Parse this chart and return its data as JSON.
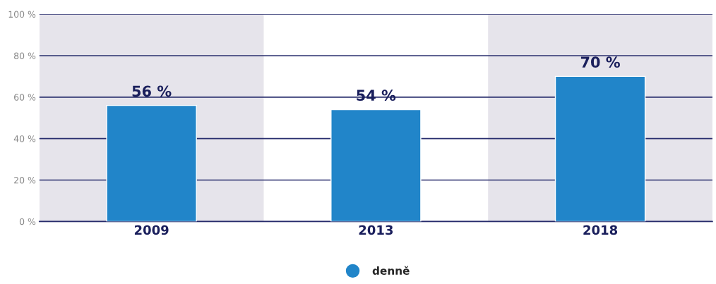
{
  "chart_data": {
    "type": "bar",
    "categories": [
      "2009",
      "2013",
      "2018"
    ],
    "series": [
      {
        "name": "denně",
        "color": "#2185c9",
        "values": [
          56,
          54,
          70
        ],
        "value_labels": [
          "56 %",
          "54 %",
          "70 %"
        ]
      }
    ],
    "ylim": [
      0,
      100
    ],
    "yticks": [
      {
        "value": 0,
        "label": "0 %"
      },
      {
        "value": 20,
        "label": "20 %"
      },
      {
        "value": 40,
        "label": "40 %"
      },
      {
        "value": 60,
        "label": "60 %"
      },
      {
        "value": 80,
        "label": "80 %"
      },
      {
        "value": 100,
        "label": "100 %"
      }
    ],
    "grid": "y",
    "legend": "bottom",
    "bands": [
      {
        "axis": "x",
        "from": "2009",
        "to": "2009",
        "color": "#e6e4eb"
      },
      {
        "axis": "x",
        "from": "2018",
        "to": "2018",
        "color": "#e6e4eb"
      }
    ]
  }
}
